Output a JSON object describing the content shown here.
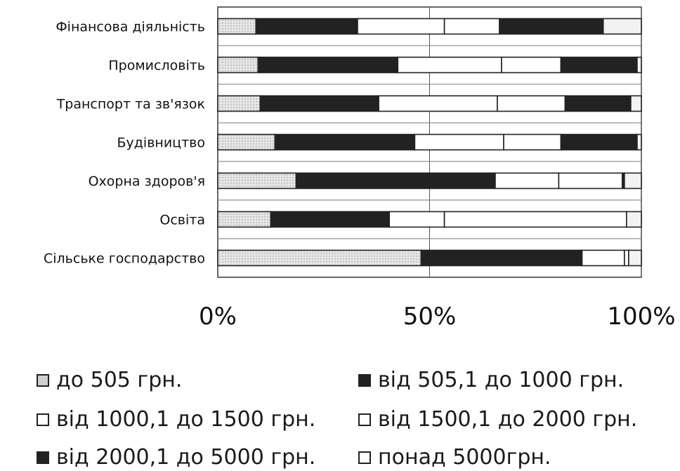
{
  "chart_data": {
    "type": "bar",
    "orientation": "horizontal",
    "stacked": "percent",
    "categories": [
      "Фінансова діяльність",
      "Промисловіть",
      "Транспорт та зв'язок",
      "Будівництво",
      "Охорна здоров'я",
      "Освіта",
      "Сільське господарство"
    ],
    "series": [
      {
        "name": "до 505 грн.",
        "values": [
          9,
          9.5,
          10,
          13.5,
          18.5,
          12.5,
          48
        ]
      },
      {
        "name": "від 505,1 до 1000 грн.",
        "values": [
          24,
          33,
          28,
          33,
          47,
          28,
          38
        ]
      },
      {
        "name": "від 1000,1 до 1500 грн.",
        "values": [
          20.5,
          24.5,
          28,
          21,
          15,
          13,
          10
        ]
      },
      {
        "name": "від 1500,1 до 2000 грн.",
        "values": [
          13,
          14,
          16,
          13.5,
          15,
          43,
          1
        ]
      },
      {
        "name": "від 2000,1 до 5000 грн.",
        "values": [
          24.5,
          18,
          15.5,
          18,
          0.5,
          0,
          0
        ]
      },
      {
        "name": "понад 5000грн.",
        "values": [
          9,
          1,
          2.5,
          1,
          4,
          3.5,
          3
        ]
      }
    ],
    "xlim": [
      0,
      100
    ],
    "xticks": [
      "0%",
      "50%",
      "100%"
    ],
    "grid": true,
    "legend_position": "bottom",
    "colors": {
      "до 505 грн.": "#d9d9d9",
      "від 505,1 до 1000 грн.": "#222222",
      "від 1000,1 до 1500 грн.": "#ffffff",
      "від 1500,1 до 2000 грн.": "#ffffff",
      "від 2000,1 до 5000 грн.": "#222222",
      "понад 5000грн.": "#f0f0f0"
    }
  }
}
